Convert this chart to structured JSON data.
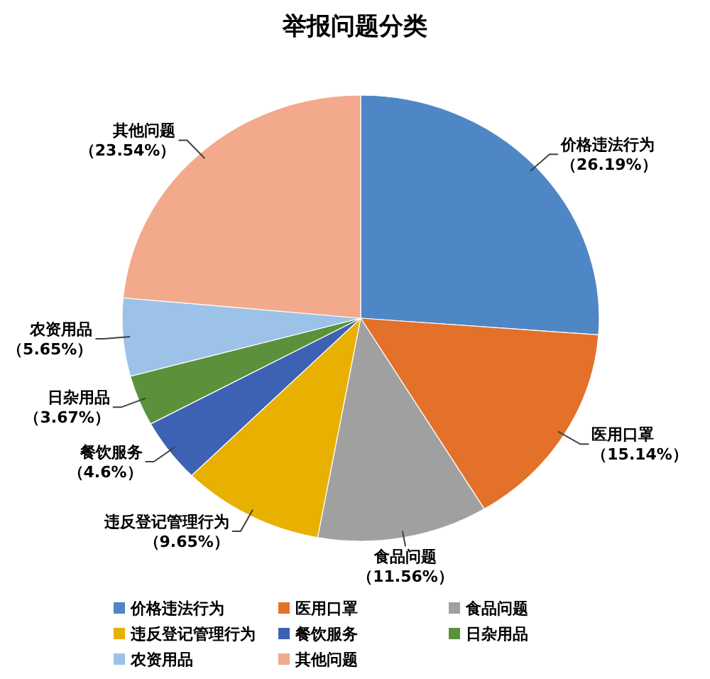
{
  "chart_data": {
    "type": "pie",
    "title": "举报问题分类",
    "categories": [
      "价格违法行为",
      "医用口罩",
      "食品问题",
      "违反登记管理行为",
      "餐饮服务",
      "日杂用品",
      "农资用品",
      "其他问题"
    ],
    "values": [
      26.19,
      15.14,
      11.56,
      9.65,
      4.6,
      3.67,
      5.65,
      23.54
    ],
    "colors": [
      "#4f86c5",
      "#e3712a",
      "#a0a0a0",
      "#e8b000",
      "#3d62b3",
      "#5b913b",
      "#9cc2e8",
      "#f2a98c"
    ],
    "value_labels": [
      "（26.19%）",
      "（15.14%）",
      "（11.56%）",
      "（9.65%）",
      "（4.6%）",
      "（3.67%）",
      "（5.65%）",
      "（23.54%）"
    ],
    "legend": "bottom"
  }
}
